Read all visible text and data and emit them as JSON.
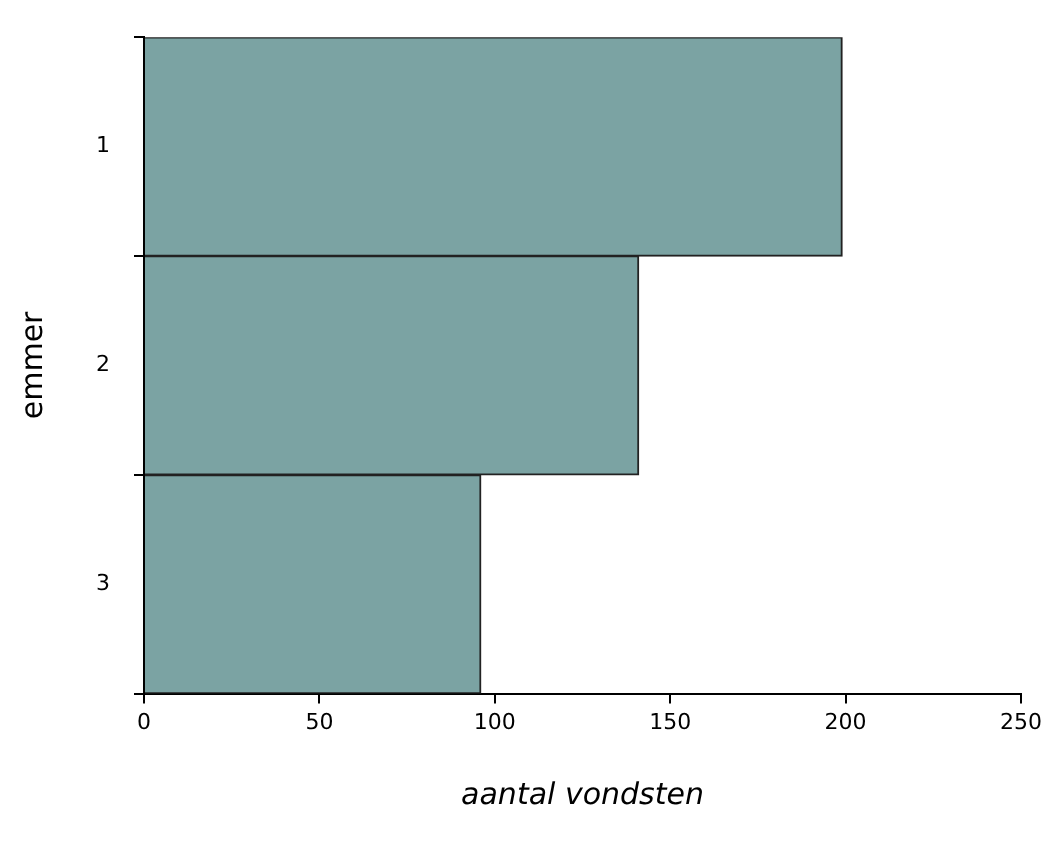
{
  "chart_data": {
    "type": "bar",
    "orientation": "horizontal",
    "xlabel": "aantal vondsten",
    "ylabel": "emmer",
    "categories": [
      "1",
      "2",
      "3"
    ],
    "values": [
      199,
      141,
      96
    ],
    "color": "#7ba3a3",
    "xlim": [
      0,
      250
    ],
    "xticks": [
      0,
      50,
      100,
      150,
      200,
      250
    ],
    "grid": false,
    "legend": false
  }
}
